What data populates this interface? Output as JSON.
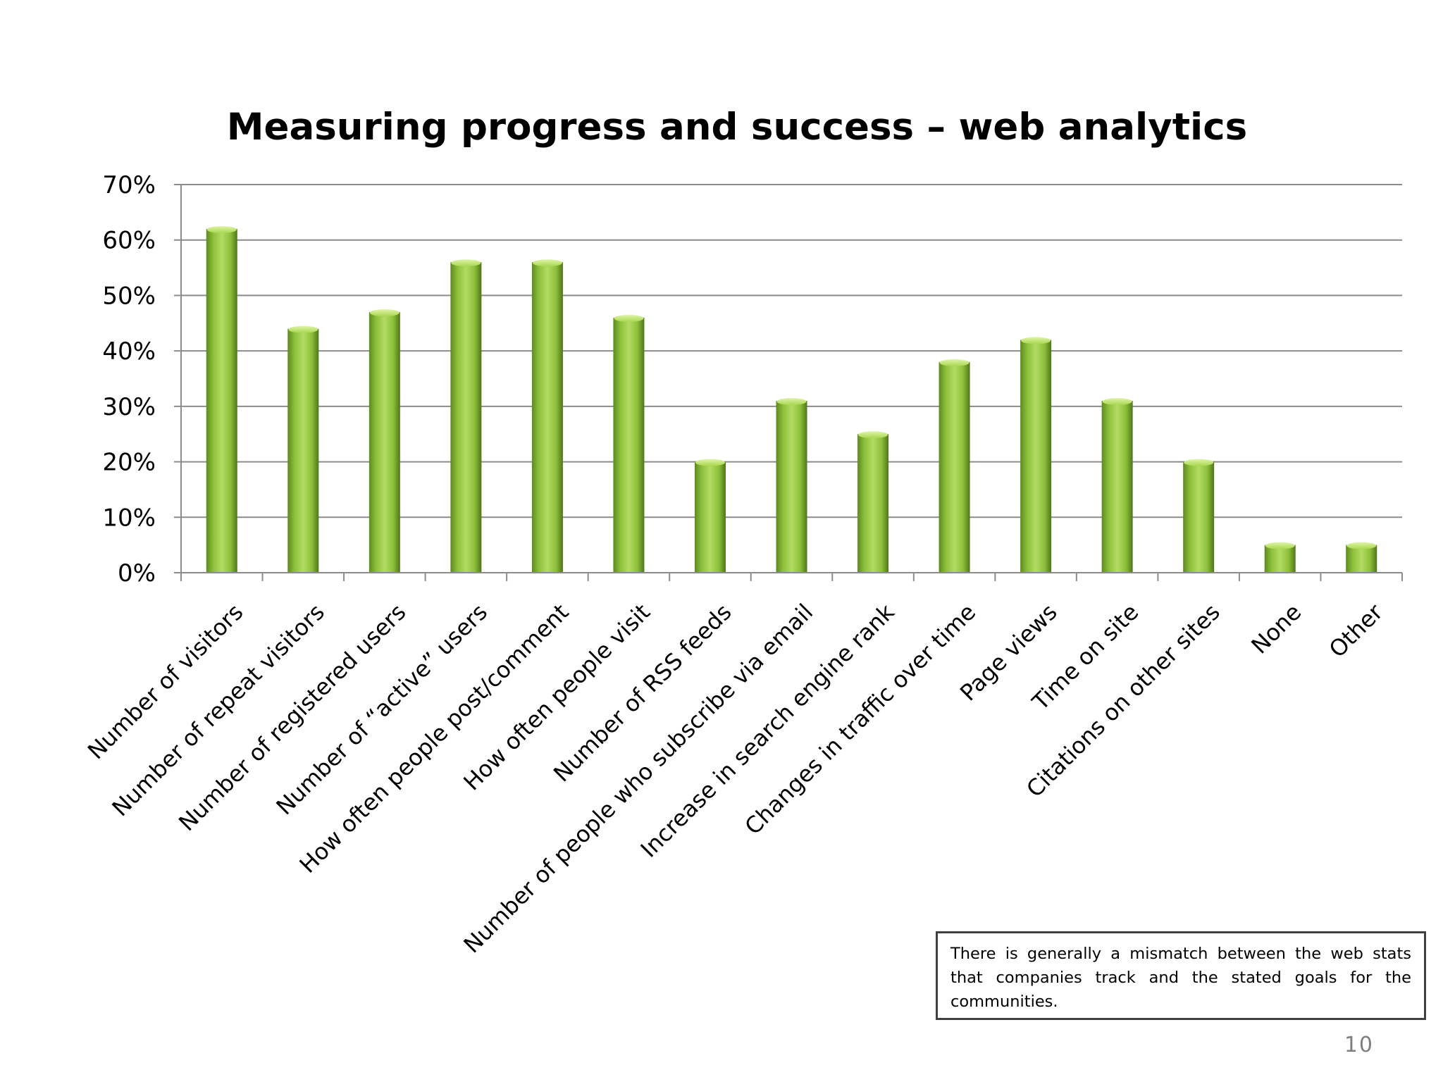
{
  "chart_data": {
    "type": "bar",
    "title": "Measuring progress and success – web analytics",
    "xlabel": "",
    "ylabel": "",
    "ylim": [
      0,
      0.7
    ],
    "yticks": [
      0,
      0.1,
      0.2,
      0.3,
      0.4,
      0.5,
      0.6,
      0.7
    ],
    "ytick_labels": [
      "0%",
      "10%",
      "20%",
      "30%",
      "40%",
      "50%",
      "60%",
      "70%"
    ],
    "grid": true,
    "legend": "none",
    "bar_color": "#8cbf3a",
    "categories": [
      "Number of visitors",
      "Number of repeat visitors",
      "Number of registered users",
      "Number of “active” users",
      "How often people post/comment",
      "How often people visit",
      "Number of RSS feeds",
      "Number of people who subscribe via email",
      "Increase in search engine rank",
      "Changes in traffic over time",
      "Page views",
      "Time on site",
      "Citations on other sites",
      "None",
      "Other"
    ],
    "values": [
      0.62,
      0.44,
      0.47,
      0.56,
      0.56,
      0.46,
      0.2,
      0.31,
      0.25,
      0.38,
      0.42,
      0.31,
      0.2,
      0.05,
      0.05
    ]
  },
  "note": "There is generally a mismatch between the web stats that companies track and the stated goals for the communities.",
  "page_number": "10"
}
